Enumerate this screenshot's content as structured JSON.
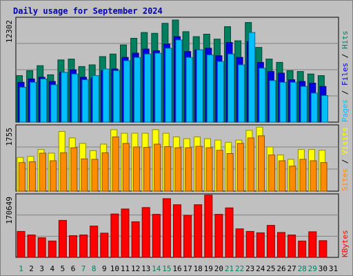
{
  "chart_data": [
    {
      "type": "bar",
      "title": "Daily usage for September 2024",
      "max_label": "12302",
      "ymax": 12302,
      "legend": [
        "Pages",
        "Files",
        "Hits"
      ],
      "legend_separator": "/",
      "colors": {
        "Hits": "#007f5f",
        "Files": "#0000e0",
        "Pages": "#00bfff"
      },
      "series": [
        {
          "name": "Hits",
          "values": [
            5600,
            6200,
            6800,
            5700,
            7500,
            7600,
            6700,
            6900,
            7900,
            8200,
            9300,
            10100,
            10800,
            10700,
            11900,
            12302,
            10900,
            10300,
            10600,
            10000,
            11500,
            9800,
            12000,
            9000,
            7600,
            7200,
            6200,
            6100,
            5800,
            5600
          ]
        },
        {
          "name": "Files",
          "values": [
            4800,
            5200,
            5400,
            4900,
            6000,
            6300,
            5400,
            5300,
            6200,
            6400,
            7800,
            8300,
            8800,
            8600,
            9400,
            10300,
            8500,
            8700,
            8900,
            8000,
            9600,
            7800,
            9700,
            7200,
            6100,
            5900,
            5100,
            4900,
            4700,
            4300
          ]
        },
        {
          "name": "Pages",
          "values": [
            4200,
            4800,
            5200,
            4500,
            6000,
            5800,
            5100,
            5600,
            6400,
            6200,
            7400,
            7800,
            8200,
            8300,
            8900,
            9900,
            7800,
            8700,
            8100,
            7300,
            8200,
            6900,
            10800,
            6500,
            5000,
            4800,
            4800,
            4300,
            3500,
            3200
          ]
        }
      ]
    },
    {
      "type": "bar",
      "max_label": "1755",
      "ymax": 1755,
      "legend": [
        "Sites",
        "Visits"
      ],
      "legend_separator": "/",
      "colors": {
        "Visits": "#ffff00",
        "Sites": "#ff8c00"
      },
      "series": [
        {
          "name": "Visits",
          "values": [
            930,
            960,
            1150,
            1050,
            1650,
            1470,
            1320,
            1120,
            1300,
            1700,
            1600,
            1600,
            1600,
            1700,
            1600,
            1500,
            1450,
            1500,
            1450,
            1410,
            1350,
            1410,
            1680,
            1770,
            1220,
            1000,
            880,
            1150,
            1150,
            1130
          ]
        },
        {
          "name": "Sites",
          "values": [
            790,
            810,
            1050,
            840,
            1060,
            1200,
            890,
            880,
            1060,
            1500,
            1320,
            1220,
            1210,
            1300,
            1230,
            1200,
            1200,
            1240,
            1200,
            1130,
            1040,
            1320,
            1470,
            1530,
            1000,
            840,
            690,
            880,
            840,
            790
          ]
        }
      ]
    },
    {
      "type": "bar",
      "max_label": "170649",
      "ymax": 170649,
      "legend": [
        "KBytes"
      ],
      "colors": {
        "KBytes": "#ff0000"
      },
      "series": [
        {
          "name": "KBytes",
          "values": [
            73000,
            63000,
            55000,
            46000,
            104000,
            61000,
            63000,
            88000,
            68000,
            122000,
            136000,
            100000,
            140000,
            121000,
            165000,
            148000,
            118000,
            148000,
            175000,
            121000,
            139000,
            80000,
            73000,
            69000,
            90000,
            70000,
            63000,
            46000,
            72000,
            47000
          ]
        }
      ]
    }
  ],
  "x_axis": {
    "labels": [
      "1",
      "2",
      "3",
      "4",
      "5",
      "6",
      "7",
      "8",
      "9",
      "10",
      "11",
      "12",
      "13",
      "14",
      "15",
      "16",
      "17",
      "18",
      "19",
      "20",
      "21",
      "22",
      "23",
      "24",
      "25",
      "26",
      "27",
      "28",
      "29",
      "30",
      "31"
    ],
    "weekday_color": "#000000",
    "weekend_color": "#00805f",
    "weekend_days": [
      1,
      7,
      8,
      14,
      15,
      21,
      22,
      28,
      29
    ]
  }
}
